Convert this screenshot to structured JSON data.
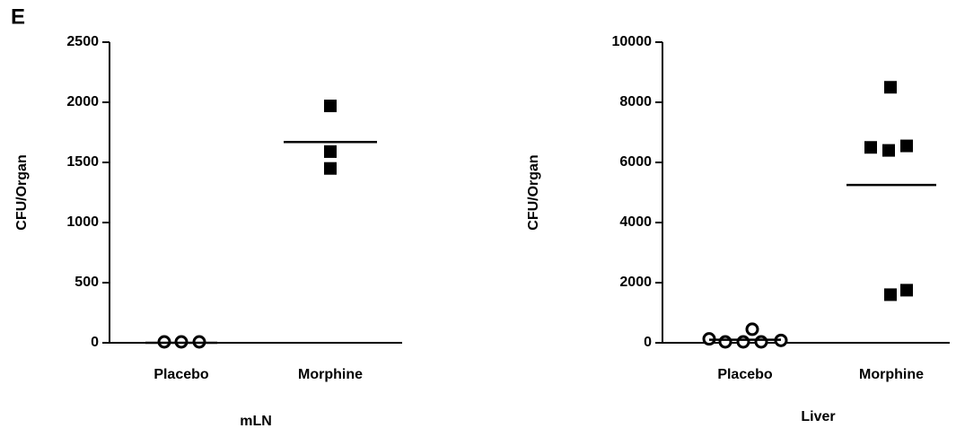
{
  "panel_label": "E",
  "chart_data": [
    {
      "type": "strip",
      "xlabel": "mLN",
      "ylabel": "CFU/Organ",
      "ylim": [
        0,
        2500
      ],
      "yticks": [
        0,
        500,
        1000,
        1500,
        2000,
        2500
      ],
      "color": "#000000",
      "groups": [
        {
          "category": "Placebo",
          "marker": "circle-open",
          "values": [
            0,
            0,
            0
          ],
          "mean": 0
        },
        {
          "category": "Morphine",
          "marker": "square",
          "values": [
            1970,
            1590,
            1450
          ],
          "mean": 1670
        }
      ]
    },
    {
      "type": "strip",
      "xlabel": "Liver",
      "ylabel": "CFU/Organ",
      "ylim": [
        0,
        10000
      ],
      "yticks": [
        0,
        2000,
        4000,
        6000,
        8000,
        10000
      ],
      "color": "#000000",
      "groups": [
        {
          "category": "Placebo",
          "marker": "circle-open",
          "values": [
            100,
            0,
            0,
            0,
            420,
            50
          ],
          "mean": 100
        },
        {
          "category": "Morphine",
          "marker": "square",
          "values": [
            8500,
            6500,
            6400,
            6550,
            1600,
            1750
          ],
          "mean": 5250
        }
      ]
    }
  ]
}
